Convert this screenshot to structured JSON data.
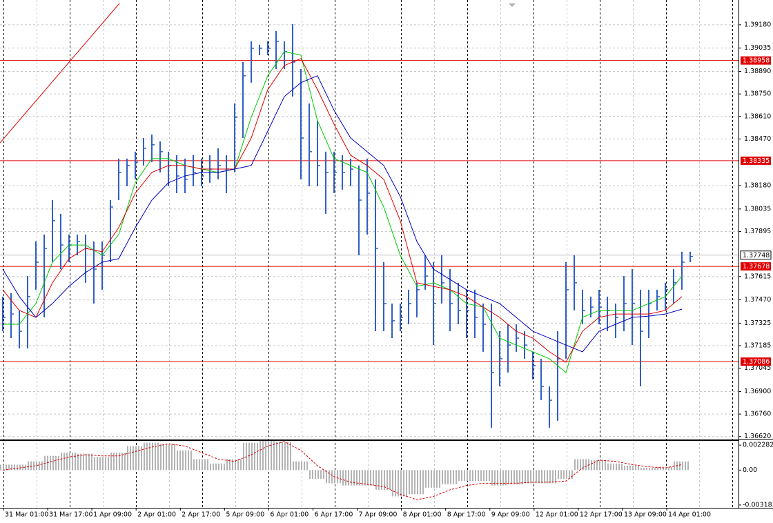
{
  "chart_data": {
    "type": "ohlc",
    "x_labels": [
      "31 Mar 01:00",
      "31 Mar 17:00",
      "1 Apr 09:00",
      "2 Apr 01:00",
      "2 Apr 17:00",
      "5 Apr 09:00",
      "6 Apr 01:00",
      "6 Apr 17:00",
      "7 Apr 09:00",
      "8 Apr 01:00",
      "8 Apr 17:00",
      "9 Apr 09:00",
      "12 Apr 01:00",
      "12 Apr 17:00",
      "13 Apr 09:00",
      "14 Apr 01:00"
    ],
    "high": [
      1.3749,
      1.37511,
      1.37404,
      1.37618,
      1.37833,
      1.37876,
      1.3809,
      1.38005,
      1.37876,
      1.37876,
      1.37876,
      1.37833,
      1.37833,
      1.3809,
      1.38348,
      1.38348,
      1.38391,
      1.38476,
      1.38498,
      1.38455,
      1.38391,
      1.38369,
      1.38348,
      1.38369,
      1.38348,
      1.38369,
      1.38412,
      1.38369,
      1.38691,
      1.38948,
      1.39077,
      1.39056,
      1.39077,
      1.39141,
      1.39077,
      1.39184,
      1.38905,
      1.38691,
      1.38584,
      1.38391,
      1.38391,
      1.38369,
      1.38348,
      1.38305,
      1.38348,
      1.38219,
      1.37704,
      1.37447,
      1.37447,
      1.37533,
      1.37576,
      1.37747,
      1.37704,
      1.37747,
      1.37661,
      1.37576,
      1.37533,
      1.37533,
      1.37447,
      1.37447,
      1.37275,
      1.37318,
      1.37318,
      1.37275,
      1.37147,
      1.37104,
      1.36932,
      1.37275,
      1.37704,
      1.37747,
      1.37533,
      1.3749,
      1.37533,
      1.3749,
      1.37447,
      1.37618,
      1.37661,
      1.37533,
      1.37533,
      1.37533,
      1.37576,
      1.37661,
      1.37769,
      1.37769
    ],
    "low": [
      1.37275,
      1.37232,
      1.37168,
      1.37168,
      1.37533,
      1.37361,
      1.37704,
      1.37661,
      1.37704,
      1.37747,
      1.37576,
      1.37447,
      1.37533,
      1.37704,
      1.3809,
      1.38176,
      1.38219,
      1.38305,
      1.38326,
      1.38262,
      1.38176,
      1.38133,
      1.38133,
      1.38176,
      1.38176,
      1.38198,
      1.38219,
      1.38133,
      1.38262,
      1.38476,
      1.3882,
      1.38991,
      1.38991,
      1.38905,
      1.38905,
      1.38734,
      1.38219,
      1.38176,
      1.38176,
      1.38005,
      1.38133,
      1.38155,
      1.38176,
      1.37747,
      1.37876,
      1.37275,
      1.37275,
      1.37232,
      1.37275,
      1.37318,
      1.37361,
      1.37533,
      1.37189,
      1.37447,
      1.37275,
      1.37318,
      1.37232,
      1.37232,
      1.37147,
      1.36675,
      1.36932,
      1.37018,
      1.37147,
      1.37104,
      1.36975,
      1.36846,
      1.36675,
      1.36718,
      1.37104,
      1.37404,
      1.37318,
      1.37361,
      1.37318,
      1.37275,
      1.37232,
      1.37275,
      1.37189,
      1.36932,
      1.37232,
      1.37404,
      1.37404,
      1.37447,
      1.37533,
      1.37704
    ],
    "close": [
      1.37361,
      1.37382,
      1.37275,
      1.3749,
      1.37704,
      1.3779,
      1.37962,
      1.37811,
      1.37811,
      1.37833,
      1.3779,
      1.37661,
      1.37747,
      1.38047,
      1.38262,
      1.38305,
      1.38326,
      1.38412,
      1.38434,
      1.38391,
      1.38305,
      1.3824,
      1.38219,
      1.38262,
      1.3824,
      1.38283,
      1.38305,
      1.38283,
      1.38605,
      1.38863,
      1.39034,
      1.39034,
      1.39034,
      1.39077,
      1.39013,
      1.38948,
      1.38476,
      1.38391,
      1.38305,
      1.38262,
      1.38262,
      1.38262,
      1.38283,
      1.3809,
      1.38133,
      1.3779,
      1.37447,
      1.3734,
      1.37361,
      1.37447,
      1.37533,
      1.37618,
      1.37447,
      1.37576,
      1.37447,
      1.37404,
      1.37404,
      1.37361,
      1.37318,
      1.37018,
      1.37104,
      1.37189,
      1.37232,
      1.37189,
      1.37061,
      1.36932,
      1.36846,
      1.37104,
      1.37533,
      1.37576,
      1.37404,
      1.37425,
      1.37425,
      1.37404,
      1.37361,
      1.37447,
      1.37447,
      1.37275,
      1.37447,
      1.3749,
      1.37533,
      1.37576,
      1.37704,
      1.37739
    ],
    "color": "#2f5fc6",
    "ylim": [
      1.36606,
      1.39334
    ],
    "yticks": [
      {
        "value": 1.3918,
        "label": "1.39180"
      },
      1.39035,
      {
        "value": 1.3889,
        "label": "1.38890"
      },
      {
        "value": 1.3875,
        "label": "1.38750"
      },
      {
        "value": 1.3861,
        "label": "1.38610"
      },
      {
        "value": 1.3847,
        "label": "1.38470"
      },
      {
        "value": 1.3818,
        "label": "1.38180"
      },
      1.38035,
      1.37895,
      1.37615,
      {
        "value": 1.3747,
        "label": "1.37470"
      },
      1.37325,
      1.37185,
      1.37045,
      {
        "value": 1.369,
        "label": "1.36900"
      },
      {
        "value": 1.3676,
        "label": "1.36760"
      },
      {
        "value": 1.3662,
        "label": "1.36620"
      }
    ],
    "grid": true,
    "levels": [
      1.38958,
      1.38335,
      1.37678,
      1.37086
    ],
    "level_color": "#e00000",
    "last_price": 1.37748,
    "moving_averages": [
      {
        "color": "#00c800",
        "values": [
          1.37318,
          1.37318,
          1.37447,
          1.37704,
          1.37811,
          1.37811,
          1.37747,
          1.37876,
          1.38198,
          1.38348,
          1.38348,
          1.38305,
          1.38283,
          1.38262,
          1.38283,
          1.38605,
          1.38863,
          1.39013,
          1.38991,
          1.38584,
          1.38348,
          1.38305,
          1.38262,
          1.38047,
          1.37747,
          1.37554,
          1.37576,
          1.37533,
          1.37447,
          1.37425,
          1.37232,
          1.37189,
          1.37147,
          1.37104,
          1.37018,
          1.37361,
          1.37404,
          1.37404,
          1.37404,
          1.37447,
          1.3749,
          1.37618
        ]
      },
      {
        "color": "#e00000",
        "values": [
          1.37533,
          1.37404,
          1.37361,
          1.37576,
          1.37726,
          1.3779,
          1.37769,
          1.37919,
          1.38133,
          1.38262,
          1.38305,
          1.38305,
          1.38283,
          1.38283,
          1.38283,
          1.38476,
          1.38777,
          1.38927,
          1.3897,
          1.38777,
          1.38562,
          1.38369,
          1.38305,
          1.38219,
          1.37962,
          1.37576,
          1.37554,
          1.37533,
          1.3749,
          1.37425,
          1.37361,
          1.37275,
          1.37232,
          1.37147,
          1.37082,
          1.37275,
          1.37361,
          1.37382,
          1.37382,
          1.37382,
          1.37404,
          1.3749
        ]
      },
      {
        "color": "#0000c0",
        "values": [
          1.37661,
          1.3749,
          1.37361,
          1.37447,
          1.37554,
          1.3764,
          1.37704,
          1.37726,
          1.37919,
          1.3809,
          1.38198,
          1.3824,
          1.38262,
          1.38262,
          1.38283,
          1.38305,
          1.38519,
          1.38734,
          1.3882,
          1.38863,
          1.38648,
          1.38476,
          1.38391,
          1.38305,
          1.38112,
          1.37833,
          1.37661,
          1.37597,
          1.37533,
          1.3749,
          1.37447,
          1.37361,
          1.37275,
          1.37232,
          1.37189,
          1.37147,
          1.37275,
          1.37318,
          1.37361,
          1.37369,
          1.37382,
          1.37412
        ]
      }
    ],
    "indicator": {
      "type": "macd",
      "histogram": [
        0.0005,
        0.0005,
        0.0008,
        0.0013,
        0.0016,
        0.0015,
        0.0012,
        0.0016,
        0.0022,
        0.0025,
        0.0024,
        0.0018,
        0.001,
        0.0006,
        0.001,
        0.0025,
        0.0027,
        0.0026,
        0.0008,
        -0.0008,
        -0.0012,
        -0.0014,
        -0.0014,
        -0.0018,
        -0.0024,
        -0.0022,
        -0.0016,
        -0.0013,
        -0.001,
        -0.001,
        -0.0014,
        -0.0013,
        -0.0012,
        -0.0012,
        -0.0008,
        0.001,
        0.0009,
        0.0006,
        0.0004,
        0.0002,
        0.0003,
        0.0008
      ],
      "signal": [
        0.0,
        0.0002,
        0.0004,
        0.0008,
        0.0012,
        0.0014,
        0.0013,
        0.0013,
        0.0017,
        0.0021,
        0.0024,
        0.0022,
        0.0016,
        0.001,
        0.0008,
        0.0014,
        0.0022,
        0.0026,
        0.0018,
        0.0004,
        -0.0006,
        -0.0011,
        -0.0013,
        -0.0015,
        -0.0022,
        -0.0027,
        -0.0024,
        -0.0018,
        -0.0014,
        -0.0012,
        -0.0012,
        -0.0012,
        -0.0011,
        -0.0011,
        -0.001,
        0.0002,
        0.0009,
        0.0008,
        0.0005,
        0.0003,
        0.0002,
        0.0005
      ],
      "histogram_color": "#b4b4b4",
      "signal_color": "#e00000",
      "ylim": [
        -0.00344,
        0.00273
      ],
      "yticks": [
        0.002282,
        {
          "value": 0,
          "label": "0.00"
        },
        -0.003183
      ]
    }
  }
}
